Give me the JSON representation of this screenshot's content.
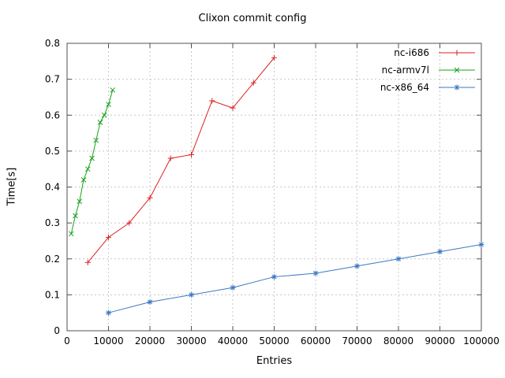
{
  "chart_data": {
    "type": "line",
    "title": "Clixon commit config",
    "xlabel": "Entries",
    "ylabel": "Time[s]",
    "xlim": [
      0,
      100000
    ],
    "ylim": [
      0,
      0.8
    ],
    "xticks": [
      0,
      10000,
      20000,
      30000,
      40000,
      50000,
      60000,
      70000,
      80000,
      90000,
      100000
    ],
    "xtick_labels": [
      "0",
      "10000",
      "20000",
      "30000",
      "40000",
      "50000",
      "60000",
      "70000",
      "80000",
      "90000",
      "100000"
    ],
    "yticks": [
      0,
      0.1,
      0.2,
      0.3,
      0.4,
      0.5,
      0.6,
      0.7,
      0.8
    ],
    "ytick_labels": [
      "0",
      "0.1",
      "0.2",
      "0.3",
      "0.4",
      "0.5",
      "0.6",
      "0.7",
      "0.8"
    ],
    "grid": true,
    "legend_position": "top-right-inside",
    "colors": {
      "grid": "#c8c8c8",
      "border": "#505050",
      "text": "#000000"
    },
    "series": [
      {
        "name": "nc-i686",
        "color": "#dd2222",
        "marker": "plus",
        "x": [
          5000,
          10000,
          15000,
          20000,
          25000,
          30000,
          35000,
          40000,
          45000,
          50000
        ],
        "y": [
          0.19,
          0.26,
          0.3,
          0.37,
          0.48,
          0.49,
          0.64,
          0.62,
          0.69,
          0.76
        ]
      },
      {
        "name": "nc-armv7l",
        "color": "#18a018",
        "marker": "cross",
        "x": [
          1000,
          2000,
          3000,
          4000,
          5000,
          6000,
          7000,
          8000,
          9000,
          10000,
          11000
        ],
        "y": [
          0.27,
          0.32,
          0.36,
          0.42,
          0.45,
          0.48,
          0.53,
          0.58,
          0.6,
          0.63,
          0.67
        ]
      },
      {
        "name": "nc-x86_64",
        "color": "#3b78c3",
        "marker": "asterisk",
        "x": [
          10000,
          20000,
          30000,
          40000,
          50000,
          60000,
          70000,
          80000,
          90000,
          100000
        ],
        "y": [
          0.05,
          0.08,
          0.1,
          0.12,
          0.15,
          0.16,
          0.18,
          0.2,
          0.22,
          0.24
        ]
      }
    ]
  }
}
